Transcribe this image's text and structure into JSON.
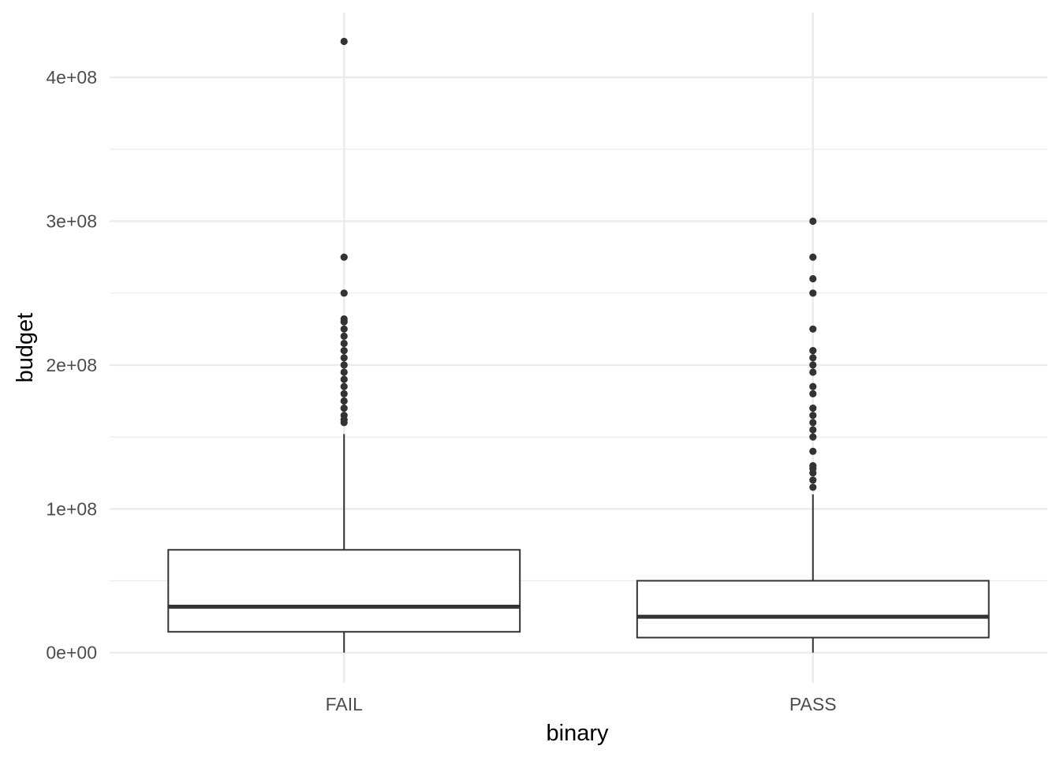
{
  "chart_data": {
    "type": "box",
    "xlabel": "binary",
    "ylabel": "budget",
    "categories": [
      "FAIL",
      "PASS"
    ],
    "ylim": [
      -21000000,
      445000000
    ],
    "y_ticks": [
      0,
      100000000,
      200000000,
      300000000,
      400000000
    ],
    "y_tick_labels": [
      "0e+00",
      "1e+08",
      "2e+08",
      "3e+08",
      "4e+08"
    ],
    "grid": true,
    "legend": "none",
    "boxes": [
      {
        "category": "FAIL",
        "whisker_low": 0,
        "q1": 14500000,
        "median": 32000000,
        "q3": 71500000,
        "whisker_high": 152000000,
        "outliers": [
          160000000,
          162000000,
          165000000,
          170000000,
          175000000,
          180000000,
          185000000,
          190000000,
          195000000,
          200000000,
          205000000,
          210000000,
          215000000,
          220000000,
          225000000,
          230000000,
          232000000,
          250000000,
          275000000,
          425000000
        ]
      },
      {
        "category": "PASS",
        "whisker_low": 0,
        "q1": 10500000,
        "median": 25000000,
        "q3": 50000000,
        "whisker_high": 110000000,
        "outliers": [
          115000000,
          120000000,
          125000000,
          128000000,
          130000000,
          140000000,
          150000000,
          155000000,
          160000000,
          165000000,
          170000000,
          180000000,
          185000000,
          195000000,
          200000000,
          205000000,
          210000000,
          225000000,
          250000000,
          260000000,
          275000000,
          300000000
        ]
      }
    ]
  },
  "colors": {
    "grid": "#ebebeb",
    "box_stroke": "#333333",
    "box_fill": "#ffffff",
    "outlier": "#333333",
    "tick_text": "#4d4d4d",
    "axis_title": "#000000"
  }
}
